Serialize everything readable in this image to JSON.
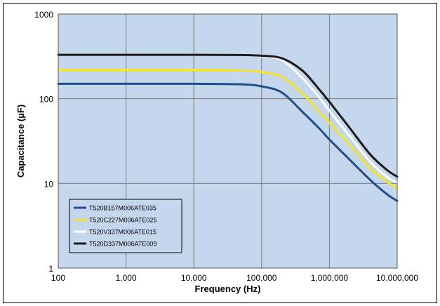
{
  "chart_data": {
    "type": "line",
    "xlabel": "Frequency (Hz)",
    "ylabel": "Capacitance (µF)",
    "x_scale": "log",
    "y_scale": "log",
    "xlim": [
      100,
      10000000
    ],
    "ylim": [
      1,
      1000
    ],
    "x_tick_labels": [
      "100",
      "1,000",
      "10,000",
      "100,000",
      "1,000,000",
      "10,000,000"
    ],
    "y_tick_labels": [
      "1",
      "10",
      "100",
      "1000"
    ],
    "grid": true,
    "legend_position": "bottom-left",
    "plot_background": "#c5d7ec",
    "x": [
      100,
      1000,
      10000,
      50000,
      100000,
      200000,
      400000,
      700000,
      1000000,
      2000000,
      4000000,
      7000000,
      10000000
    ],
    "series": [
      {
        "name": "T520B157M006ATE035",
        "color": "#1f4e8c",
        "values": [
          150,
          150,
          150,
          148,
          140,
          118,
          70,
          45,
          33,
          19,
          11,
          7.5,
          6.2
        ]
      },
      {
        "name": "T520C227M006ATE025",
        "color": "#f5e62a",
        "values": [
          220,
          220,
          220,
          217,
          208,
          180,
          115,
          70,
          52,
          28,
          15,
          10.5,
          8.8
        ]
      },
      {
        "name": "T520V337M006ATE015",
        "color": "#ffffff",
        "values": [
          330,
          330,
          330,
          328,
          318,
          285,
          175,
          105,
          72,
          36,
          18,
          12,
          10.2
        ]
      },
      {
        "name": "T520D337M006ATE009",
        "color": "#1a1a1a",
        "values": [
          330,
          330,
          330,
          328,
          322,
          300,
          215,
          130,
          92,
          45,
          22,
          14.5,
          12
        ]
      }
    ]
  }
}
